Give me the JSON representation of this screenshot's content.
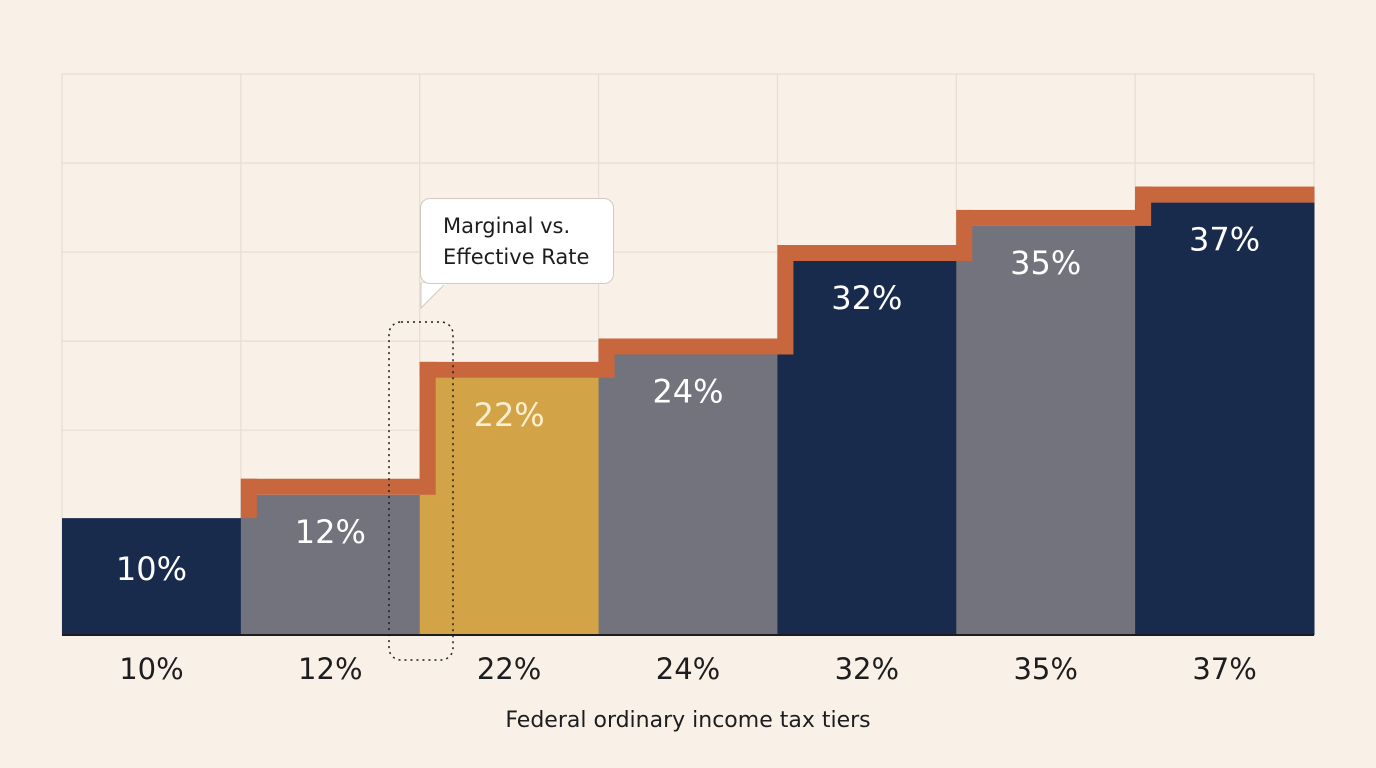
{
  "colors": {
    "background": "#f9f1e7",
    "grid": "#e7ddd0",
    "navy": "#192b4d",
    "gray": "#72737c",
    "gold": "#d2a447",
    "step_line": "#c8663e",
    "axis": "#1d1d1f",
    "bar_label": "#ffffff",
    "highlight_label": "#fcefd0",
    "tick_label": "#1d1d1f"
  },
  "callout": {
    "line1": "Marginal vs.",
    "line2": "Effective Rate"
  },
  "chart_data": {
    "type": "bar",
    "title": "",
    "xlabel": "Federal ordinary income tax tiers",
    "ylabel": "",
    "ylim": [
      0,
      48
    ],
    "grid": true,
    "legend": "none",
    "highlight_category": "22%",
    "categories": [
      "10%",
      "12%",
      "22%",
      "24%",
      "32%",
      "35%",
      "37%"
    ],
    "values": [
      10,
      12,
      22,
      24,
      32,
      35,
      37
    ],
    "bar_labels": [
      "10%",
      "12%",
      "22%",
      "24%",
      "32%",
      "35%",
      "37%"
    ],
    "bar_colors": [
      "navy",
      "gray",
      "gold",
      "gray",
      "navy",
      "gray",
      "navy"
    ]
  }
}
